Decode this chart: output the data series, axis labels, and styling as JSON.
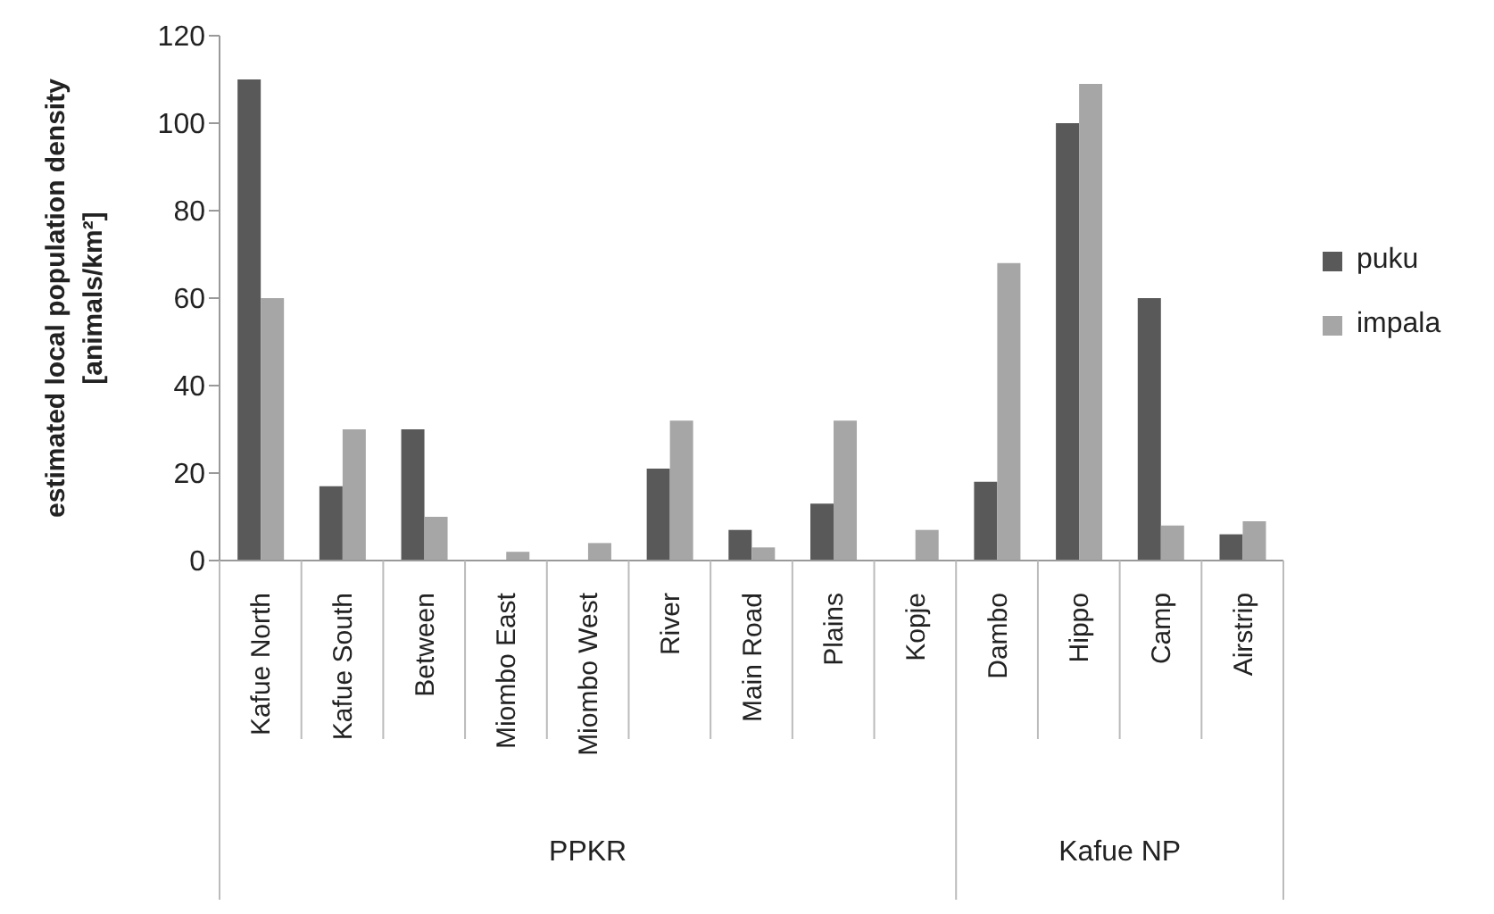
{
  "chart_data": {
    "type": "bar",
    "ylabel": "estimated local population density [animals/km²]",
    "categories": [
      "Kafue North",
      "Kafue South",
      "Between",
      "Miombo East",
      "Miombo West",
      "River",
      "Main Road",
      "Plains",
      "Kopje",
      "Dambo",
      "Hippo",
      "Camp",
      "Airstrip"
    ],
    "series": [
      {
        "name": "puku",
        "color": "#595959",
        "values": [
          110,
          17,
          30,
          0,
          0,
          21,
          7,
          13,
          0,
          18,
          100,
          60,
          6
        ]
      },
      {
        "name": "impala",
        "color": "#a6a6a6",
        "values": [
          60,
          30,
          10,
          2,
          4,
          32,
          3,
          32,
          7,
          68,
          109,
          8,
          9
        ]
      }
    ],
    "ylim": [
      0,
      120
    ],
    "yticks": [
      0,
      20,
      40,
      60,
      80,
      100,
      120
    ],
    "grid": false,
    "legend": "right",
    "annotations": [
      "PPKR",
      "Kafue NP"
    ]
  }
}
